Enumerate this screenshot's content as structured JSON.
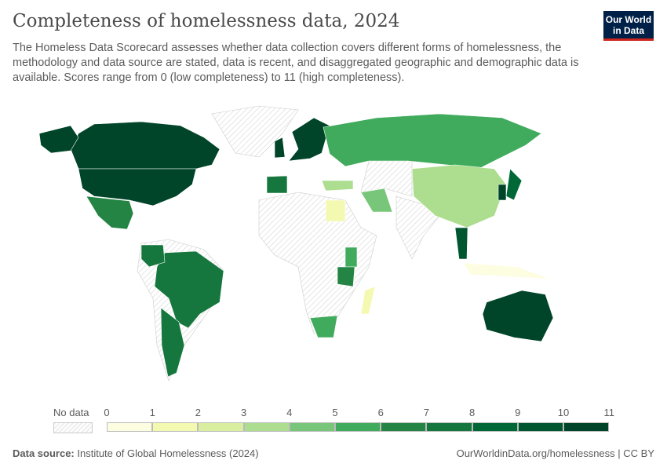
{
  "header": {
    "title": "Completeness of homelessness data, 2024",
    "subtitle": "The Homeless Data Scorecard assesses whether data collection covers different forms of homelessness, the methodology and data source are stated, data is recent, and disaggregated geographic and demographic data is available. Scores range from 0 (low completeness) to 11 (high completeness).",
    "logo": "Our World in Data"
  },
  "chart_data": {
    "type": "choropleth",
    "title": "Completeness of homelessness data, 2024",
    "legend": {
      "no_data_label": "No data",
      "ticks": [
        "0",
        "1",
        "2",
        "3",
        "4",
        "5",
        "6",
        "7",
        "8",
        "9",
        "10",
        "11"
      ],
      "colors": [
        "#fdfde2",
        "#f4f9b1",
        "#d9ef9f",
        "#addd8e",
        "#78c679",
        "#41ab5d",
        "#238443",
        "#16773e",
        "#006837",
        "#00572f",
        "#004529"
      ]
    },
    "regions": [
      {
        "name": "Canada",
        "score": 11
      },
      {
        "name": "United States",
        "score": 11
      },
      {
        "name": "Mexico",
        "score": 6
      },
      {
        "name": "Brazil",
        "score": 7
      },
      {
        "name": "Argentina",
        "score": 7
      },
      {
        "name": "Colombia",
        "score": 7
      },
      {
        "name": "United Kingdom",
        "score": 10
      },
      {
        "name": "Spain",
        "score": 7
      },
      {
        "name": "Sweden",
        "score": 10
      },
      {
        "name": "Russia",
        "score": 5
      },
      {
        "name": "China",
        "score": 3
      },
      {
        "name": "Turkey",
        "score": 3
      },
      {
        "name": "Iran",
        "score": 4
      },
      {
        "name": "Egypt",
        "score": 1
      },
      {
        "name": "Kenya",
        "score": 5
      },
      {
        "name": "Tanzania",
        "score": 6
      },
      {
        "name": "South Africa",
        "score": 5
      },
      {
        "name": "Madagascar",
        "score": 1
      },
      {
        "name": "Thailand",
        "score": 9
      },
      {
        "name": "Japan",
        "score": 8
      },
      {
        "name": "South Korea",
        "score": 10
      },
      {
        "name": "Indonesia",
        "score": 0
      },
      {
        "name": "Australia",
        "score": 11
      }
    ]
  },
  "footer": {
    "source_label": "Data source:",
    "source": "Institute of Global Homelessness (2024)",
    "url": "OurWorldinData.org/homelessness | CC BY"
  }
}
